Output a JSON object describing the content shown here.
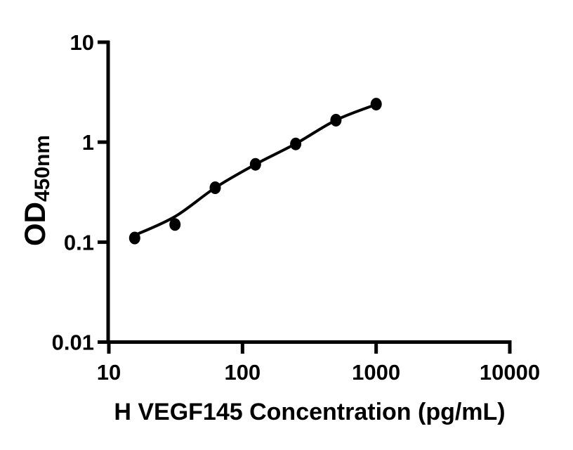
{
  "figure": {
    "background_color": "#ffffff",
    "ink_color": "#000000"
  },
  "chart_data": {
    "type": "scatter",
    "description": "ELISA standard curve with filled circular markers and a smooth fitted line on log-log axes",
    "title": "",
    "xlabel": "H VEGF145 Concentration (pg/mL)",
    "ylabel": "OD450nm",
    "ylabel_main": "OD",
    "ylabel_sub": "450nm",
    "x_scale": "log10",
    "y_scale": "log10",
    "xlim": [
      10,
      10000
    ],
    "ylim": [
      0.01,
      10
    ],
    "x_ticks": [
      {
        "value": 10,
        "label": "10"
      },
      {
        "value": 100,
        "label": "100"
      },
      {
        "value": 1000,
        "label": "1000"
      },
      {
        "value": 10000,
        "label": "10000"
      }
    ],
    "y_ticks": [
      {
        "value": 10,
        "label": "10"
      },
      {
        "value": 1,
        "label": "1"
      },
      {
        "value": 0.1,
        "label": "0.1"
      },
      {
        "value": 0.01,
        "label": "0.01"
      }
    ],
    "grid": "off",
    "legend": "none",
    "marker_style": "filled-circle",
    "marker_color": "#000000",
    "line_color": "#000000",
    "series": [
      {
        "name": "standards",
        "x": [
          15.6,
          31.25,
          62.5,
          125,
          250,
          500,
          1000
        ],
        "y": [
          0.11,
          0.15,
          0.35,
          0.6,
          0.96,
          1.66,
          2.4
        ]
      }
    ],
    "fit_line": {
      "name": "fitted-curve",
      "x": [
        15.6,
        31.25,
        62.5,
        125,
        250,
        500,
        1000
      ],
      "y": [
        0.117,
        0.18,
        0.35,
        0.6,
        0.965,
        1.66,
        2.38
      ]
    }
  }
}
